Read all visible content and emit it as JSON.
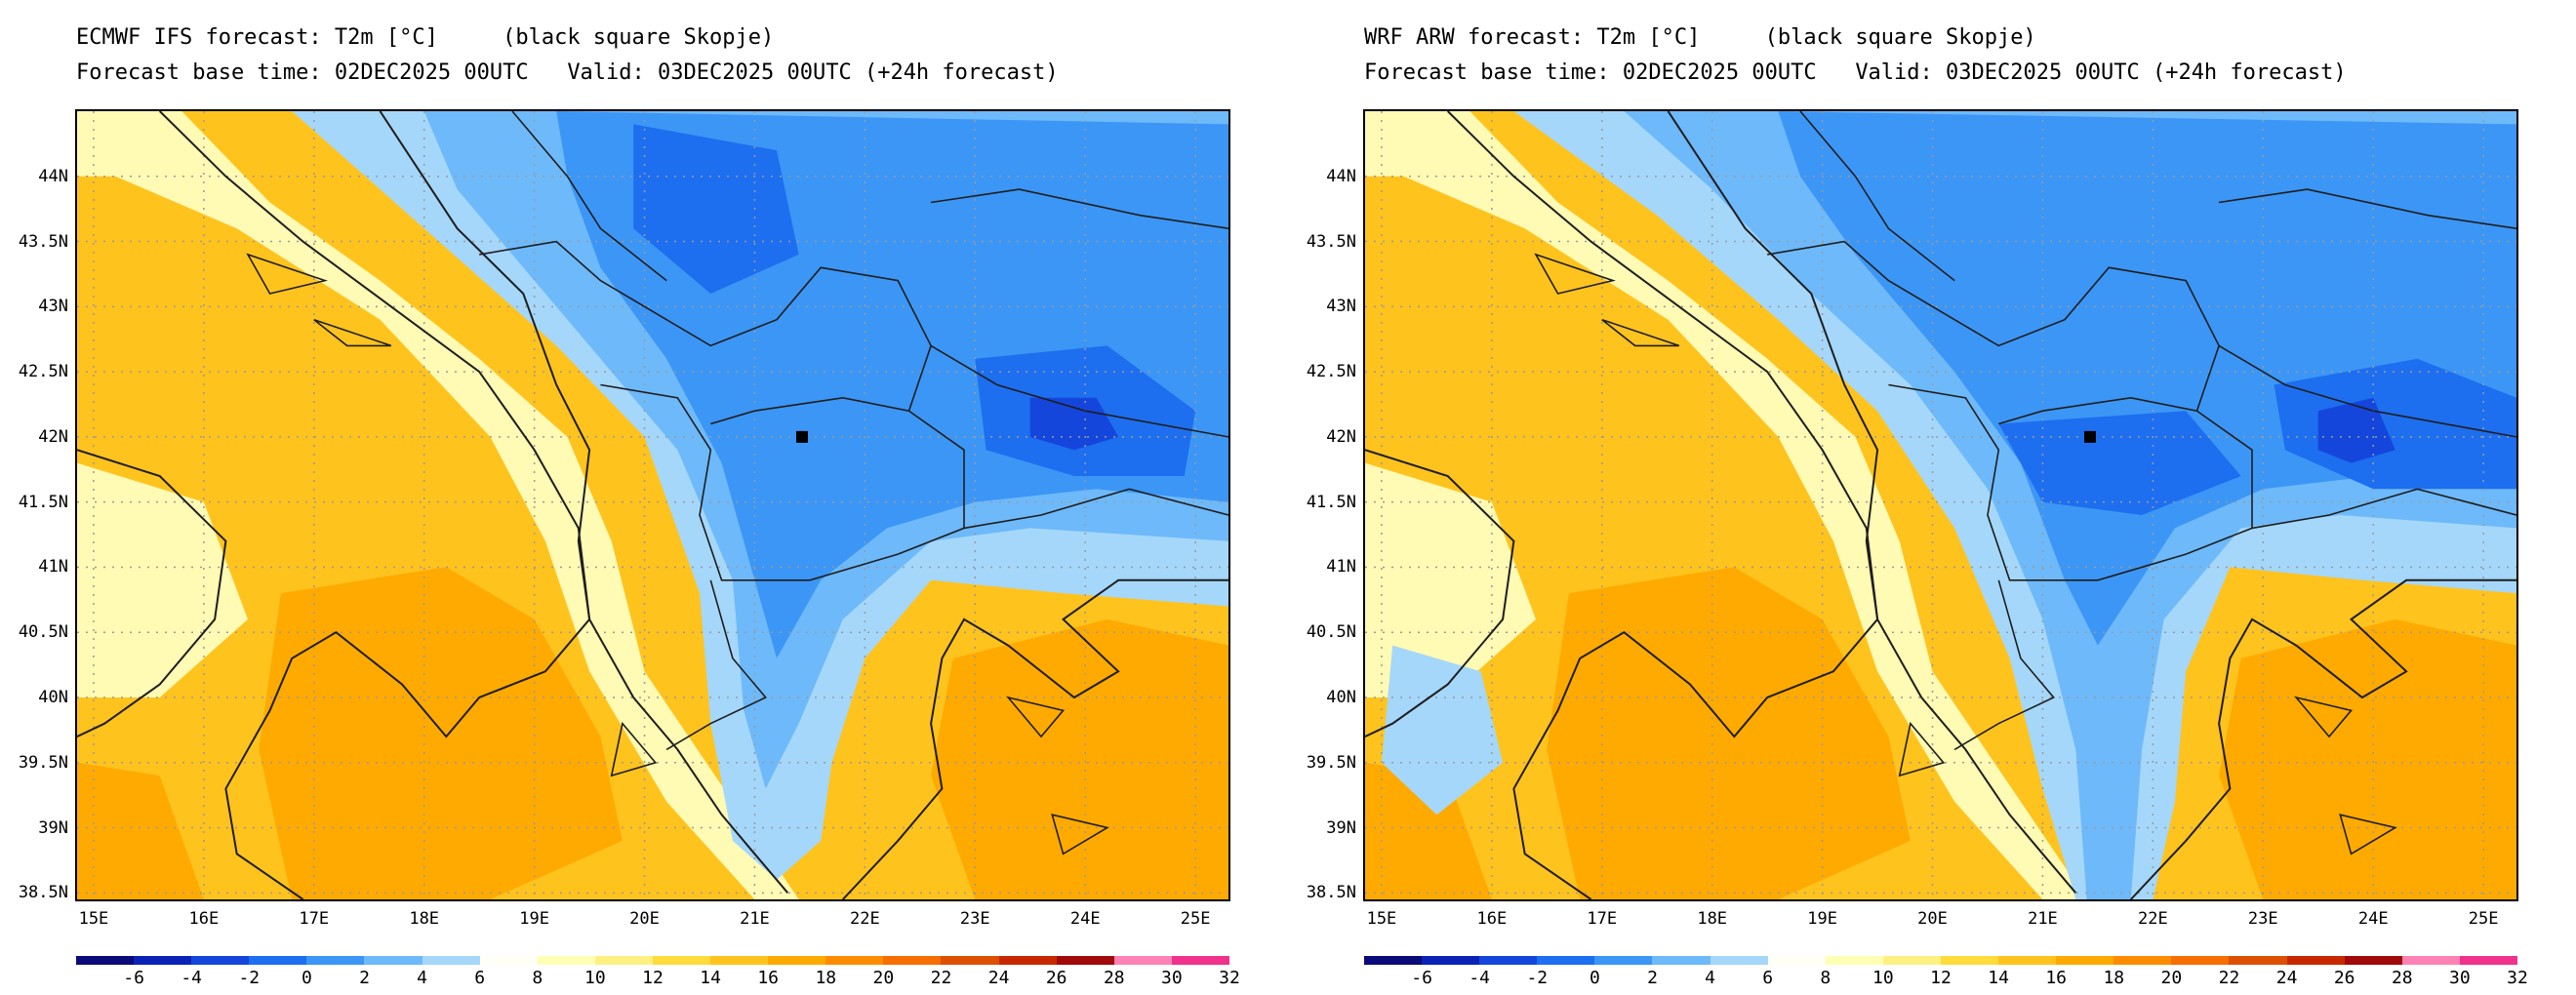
{
  "panels": [
    {
      "id": "ecmwf",
      "title_line1": "ECMWF IFS forecast: T2m [°C]     (black square Skopje)",
      "title_line2": "Forecast base time: 02DEC2025 00UTC   Valid: 03DEC2025 00UTC (+24h forecast)"
    },
    {
      "id": "wrf",
      "title_line1": "WRF ARW forecast: T2m [°C]     (black square Skopje)",
      "title_line2": "Forecast base time: 02DEC2025 00UTC   Valid: 03DEC2025 00UTC (+24h forecast)"
    }
  ],
  "lat_labels": [
    "44N",
    "43.5N",
    "43N",
    "42.5N",
    "42N",
    "41.5N",
    "41N",
    "40.5N",
    "40N",
    "39.5N",
    "39N",
    "38.5N"
  ],
  "lat_values": [
    44,
    43.5,
    43,
    42.5,
    42,
    41.5,
    41,
    40.5,
    40,
    39.5,
    39,
    38.5
  ],
  "lon_labels": [
    "15E",
    "16E",
    "17E",
    "18E",
    "19E",
    "20E",
    "21E",
    "22E",
    "23E",
    "24E",
    "25E"
  ],
  "lon_values": [
    15,
    16,
    17,
    18,
    19,
    20,
    21,
    22,
    23,
    24,
    25
  ],
  "map_extent": {
    "lon": [
      14.85,
      25.3
    ],
    "lat": [
      38.45,
      44.5
    ]
  },
  "marker": {
    "lon": 21.43,
    "lat": 42.0
  },
  "colorbar_labels": [
    "-6",
    "-4",
    "-2",
    "0",
    "2",
    "4",
    "6",
    "8",
    "10",
    "12",
    "14",
    "16",
    "18",
    "20",
    "22",
    "24",
    "26",
    "28",
    "30",
    "32"
  ],
  "colorbar_colors": [
    "#0a0a78",
    "#0a23b4",
    "#1446dc",
    "#1e6ef0",
    "#3c96f5",
    "#6eb9fa",
    "#a5d7fa",
    "#fffff5",
    "#ffffb4",
    "#fff082",
    "#ffdc3c",
    "#ffc31e",
    "#ffaa00",
    "#ff8c00",
    "#f56e00",
    "#dc5000",
    "#c82800",
    "#a00a0a",
    "#ff82b4",
    "#f0328c"
  ],
  "colors": {
    "sea_warm": "#ffd21e",
    "land_warm": "#ffc31e",
    "hot": "#ffaa00",
    "mild": "#fffab4",
    "cool": "#a5d7fa",
    "cold": "#6eb9fa",
    "colder": "#3c96f5",
    "coldest": "#1e6ef0",
    "deep": "#1446dc",
    "grid": "#9a9a9a",
    "coast": "#1e1e1e"
  }
}
